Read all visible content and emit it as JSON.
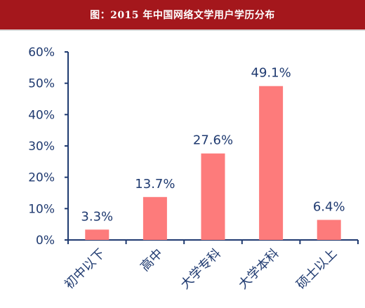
{
  "header": {
    "title": "图：2015 年中国网络文学用户学历分布"
  },
  "colors": {
    "header_bg": "#a4171c",
    "bar": "#fd7b7b",
    "axis": "#1f3a70",
    "text": "#1f3a70"
  },
  "chart_data": {
    "type": "bar",
    "title": "图：2015 年中国网络文学用户学历分布",
    "categories": [
      "初中以下",
      "高中",
      "大学专科",
      "大学本科",
      "硕士以上"
    ],
    "values": [
      3.3,
      13.7,
      27.6,
      49.1,
      6.4
    ],
    "data_labels": [
      "3.3%",
      "13.7%",
      "27.6%",
      "49.1%",
      "6.4%"
    ],
    "yticks": [
      0,
      10,
      20,
      30,
      40,
      50,
      60
    ],
    "ytick_labels": [
      "0%",
      "10%",
      "20%",
      "30%",
      "40%",
      "50%",
      "60%"
    ],
    "ylim": [
      0,
      60
    ],
    "xlabel": "",
    "ylabel": "",
    "grid": false,
    "legend": "none"
  }
}
